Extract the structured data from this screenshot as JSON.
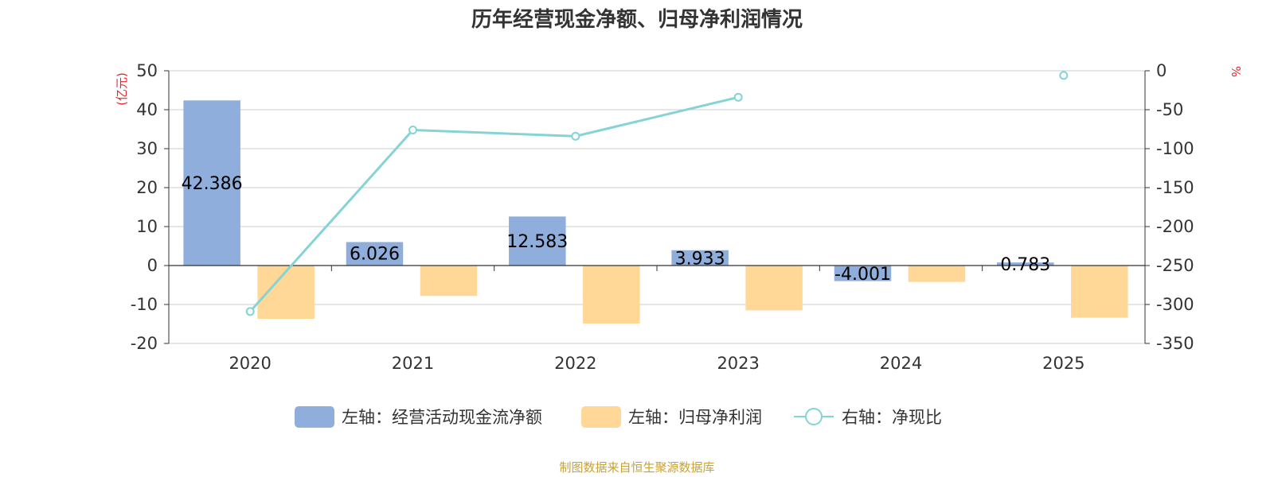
{
  "colors": {
    "bar_cash": "#8FAEDB",
    "bar_profit": "#FFD898",
    "line_ratio": "#86D3D6",
    "unit_red": "#E5262E",
    "source": "#C9A233",
    "grid": "#CCCCCC",
    "axis": "#333333"
  },
  "chart_data": {
    "type": "bar",
    "title": "历年经营现金净额、归母净利润情况",
    "categories": [
      "2020",
      "2021",
      "2022",
      "2023",
      "2024",
      "2025"
    ],
    "series": [
      {
        "name": "左轴：经营活动现金流净额",
        "type": "bar",
        "axis": "left",
        "values": [
          42.386,
          6.026,
          12.583,
          3.933,
          -4.001,
          0.783
        ],
        "labels": [
          "42.386",
          "6.026",
          "12.583",
          "3.933",
          "-4.001",
          "0.783"
        ]
      },
      {
        "name": "左轴：归母净利润",
        "type": "bar",
        "axis": "left",
        "values": [
          -13.7,
          -7.8,
          -14.9,
          -11.5,
          -4.2,
          -13.4
        ]
      },
      {
        "name": "右轴：净现比",
        "type": "line",
        "axis": "right",
        "values": [
          -309,
          -76,
          -84,
          -34,
          null,
          -6
        ]
      }
    ],
    "left_axis": {
      "unit": "(亿元)",
      "ylim": [
        -20,
        50
      ],
      "ticks": [
        50,
        40,
        30,
        20,
        10,
        0,
        -10,
        -20
      ]
    },
    "right_axis": {
      "unit": "%",
      "ylim": [
        -350,
        0
      ],
      "ticks": [
        0,
        -50,
        -100,
        -150,
        -200,
        -250,
        -300,
        -350
      ]
    },
    "grid": true,
    "legend_position": "bottom"
  },
  "source_text": "制图数据来自恒生聚源数据库"
}
